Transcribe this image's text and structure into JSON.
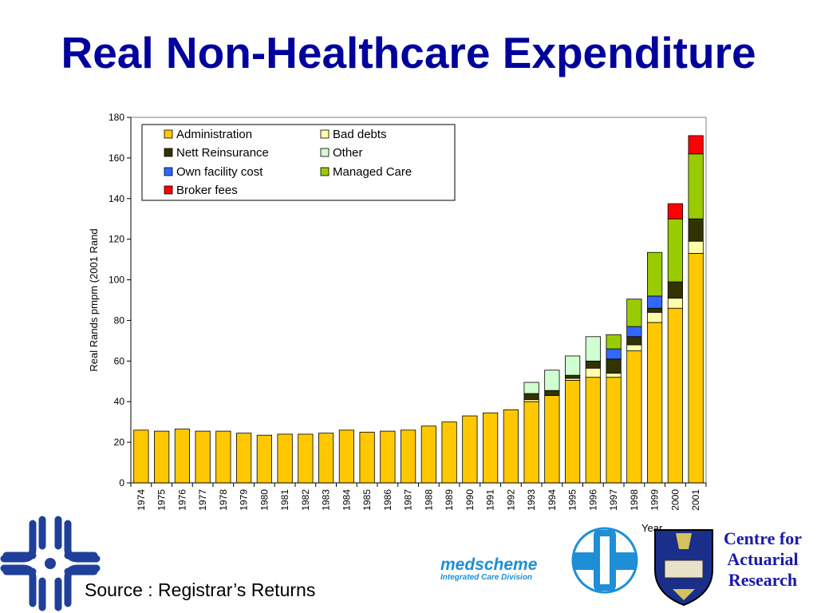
{
  "slide": {
    "title": "Real Non-Healthcare Expenditure",
    "source": "Source : Registrar’s Returns",
    "cfar_lines": [
      "Centre for",
      "Actuarial",
      "Research"
    ],
    "medscheme_name": "medscheme",
    "medscheme_sub": "Integrated Care Division"
  },
  "chart_data": {
    "type": "bar",
    "stacked": true,
    "xlabel": "Year",
    "ylabel": "Real Rands pmpm (2001 Rand",
    "ylim": [
      0,
      180
    ],
    "yticks": [
      0,
      20,
      40,
      60,
      80,
      100,
      120,
      140,
      160,
      180
    ],
    "legend_position": "top-left",
    "grid": false,
    "categories": [
      "1974",
      "1975",
      "1976",
      "1977",
      "1978",
      "1979",
      "1980",
      "1981",
      "1982",
      "1983",
      "1984",
      "1985",
      "1986",
      "1987",
      "1988",
      "1989",
      "1990",
      "1991",
      "1992",
      "1993",
      "1994",
      "1995",
      "1996",
      "1997",
      "1998",
      "1999",
      "2000",
      "2001"
    ],
    "series": [
      {
        "name": "Administration",
        "color": "#ffc800",
        "values": [
          26,
          25.5,
          26.5,
          25.5,
          25.5,
          24.5,
          23.5,
          24,
          24,
          24.5,
          26,
          25,
          25.5,
          26,
          28,
          30,
          33,
          34.5,
          36,
          40,
          43,
          50.5,
          52,
          52,
          65,
          79,
          86,
          113
        ]
      },
      {
        "name": "Bad debts",
        "color": "#ffffa8",
        "values": [
          0,
          0,
          0,
          0,
          0,
          0,
          0,
          0,
          0,
          0,
          0,
          0,
          0,
          0,
          0,
          0,
          0,
          0,
          0,
          1,
          0,
          1,
          4.5,
          2,
          3,
          5,
          5,
          6
        ]
      },
      {
        "name": "Nett Reinsurance",
        "color": "#333300",
        "values": [
          0,
          0,
          0,
          0,
          0,
          0,
          0,
          0,
          0,
          0,
          0,
          0,
          0,
          0,
          0,
          0,
          0,
          0,
          0,
          3,
          2.5,
          1.5,
          3.5,
          7,
          4,
          2,
          8,
          11
        ]
      },
      {
        "name": "Other",
        "color": "#d0ffd0",
        "values": [
          0,
          0,
          0,
          0,
          0,
          0,
          0,
          0,
          0,
          0,
          0,
          0,
          0,
          0,
          0,
          0,
          0,
          0,
          0,
          5.5,
          10,
          9.5,
          12,
          0,
          0,
          0,
          0,
          0
        ]
      },
      {
        "name": "Own facility cost",
        "color": "#3366ff",
        "values": [
          0,
          0,
          0,
          0,
          0,
          0,
          0,
          0,
          0,
          0,
          0,
          0,
          0,
          0,
          0,
          0,
          0,
          0,
          0,
          0,
          0,
          0,
          0,
          5,
          5,
          6,
          0,
          0
        ]
      },
      {
        "name": "Managed Care",
        "color": "#99cc00",
        "values": [
          0,
          0,
          0,
          0,
          0,
          0,
          0,
          0,
          0,
          0,
          0,
          0,
          0,
          0,
          0,
          0,
          0,
          0,
          0,
          0,
          0,
          0,
          0,
          7,
          13.5,
          21.5,
          31,
          32
        ]
      },
      {
        "name": "Broker fees",
        "color": "#ff0000",
        "values": [
          0,
          0,
          0,
          0,
          0,
          0,
          0,
          0,
          0,
          0,
          0,
          0,
          0,
          0,
          0,
          0,
          0,
          0,
          0,
          0,
          0,
          0,
          0,
          0,
          0,
          0,
          7.5,
          9
        ]
      }
    ],
    "legend_order": [
      "Administration",
      "Bad debts",
      "Nett Reinsurance",
      "Other",
      "Own facility cost",
      "Managed Care",
      "Broker fees"
    ]
  }
}
